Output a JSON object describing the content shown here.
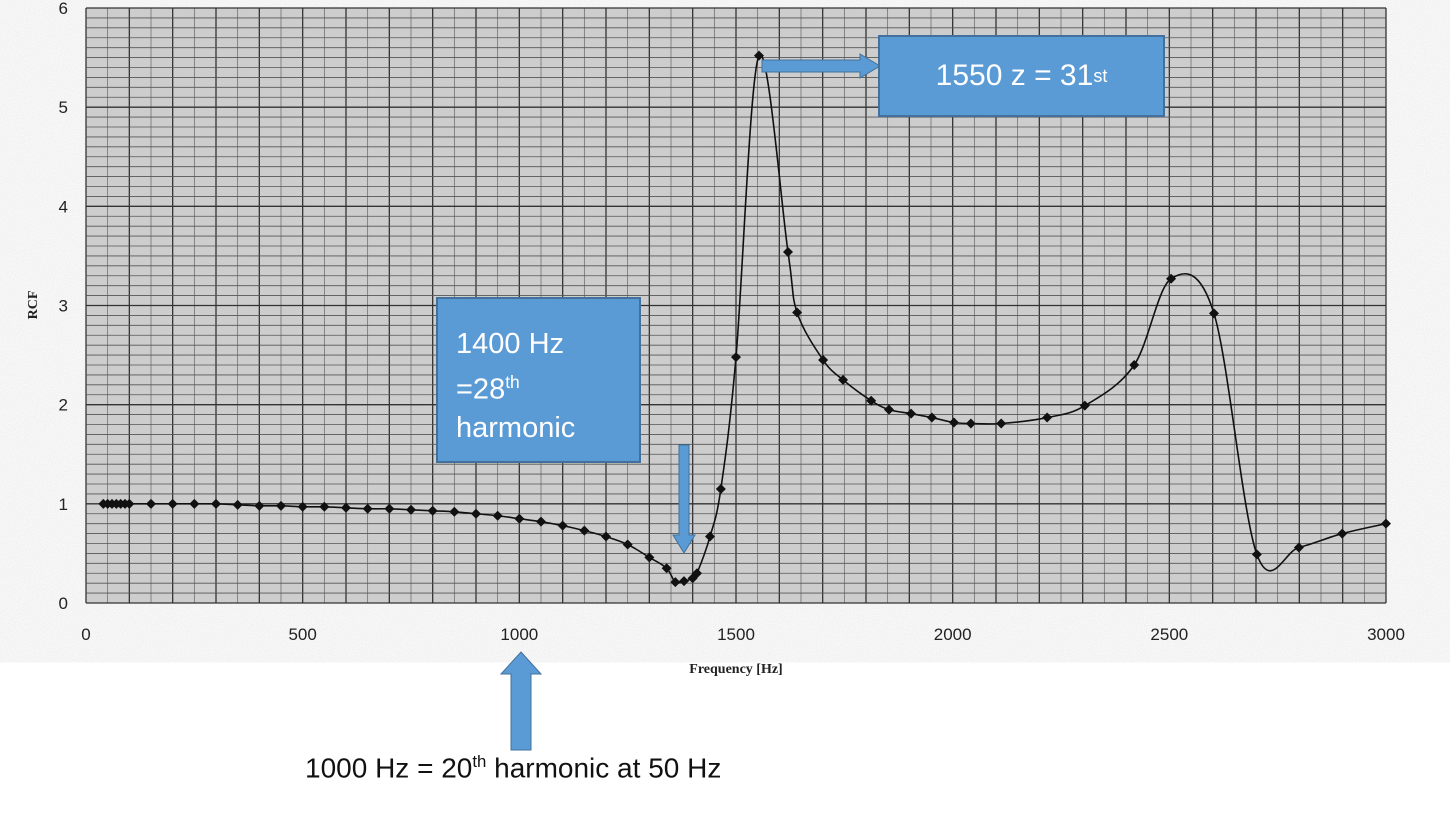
{
  "chart_data": {
    "type": "line",
    "title": "",
    "xlabel": "Frequency [Hz]",
    "ylabel": "RCF",
    "xlim": [
      0,
      3000
    ],
    "ylim": [
      0,
      6
    ],
    "xticks": [
      0,
      500,
      1000,
      1500,
      2000,
      2500,
      3000
    ],
    "yticks": [
      0,
      1,
      2,
      3,
      4,
      5,
      6
    ],
    "grid": true,
    "marker": "diamond",
    "line_color": "#111111",
    "x": [
      40,
      50,
      60,
      70,
      80,
      90,
      100,
      150,
      200,
      250,
      300,
      350,
      400,
      450,
      500,
      550,
      600,
      650,
      700,
      750,
      800,
      850,
      900,
      950,
      1000,
      1050,
      1100,
      1150,
      1200,
      1250,
      1300,
      1340,
      1360,
      1380,
      1400,
      1410,
      1440,
      1465,
      1500,
      1553,
      1620,
      1641,
      1701,
      1747,
      1812,
      1853,
      1904,
      1952,
      2003,
      2042,
      2112,
      2218,
      2305,
      2419,
      2504,
      2603,
      2702,
      2799,
      2899,
      3000
    ],
    "y": [
      1.0,
      1.0,
      1.0,
      1.0,
      1.0,
      1.0,
      1.0,
      1.0,
      1.0,
      1.0,
      1.0,
      0.99,
      0.98,
      0.98,
      0.97,
      0.97,
      0.96,
      0.95,
      0.95,
      0.94,
      0.93,
      0.92,
      0.9,
      0.88,
      0.85,
      0.82,
      0.78,
      0.73,
      0.67,
      0.59,
      0.46,
      0.35,
      0.21,
      0.22,
      0.25,
      0.3,
      0.67,
      1.15,
      2.48,
      5.52,
      3.54,
      2.93,
      2.45,
      2.25,
      2.04,
      1.95,
      1.91,
      1.87,
      1.82,
      1.81,
      1.81,
      1.87,
      1.99,
      2.4,
      3.27,
      2.92,
      0.49,
      0.56,
      0.7,
      0.8
    ]
  },
  "annotations": {
    "box1": {
      "line1": "1400 Hz",
      "line2_pre": "=28",
      "line2_sup": "th",
      "line3": "harmonic"
    },
    "box2": {
      "pre": "1550 z = 31",
      "sup": "st"
    },
    "bottom": {
      "pre": "1000 Hz = 20",
      "sup": "th",
      "post": " harmonic at 50 Hz"
    },
    "box_color": "#5b9bd5",
    "arrow_color": "#5b9bd5"
  }
}
